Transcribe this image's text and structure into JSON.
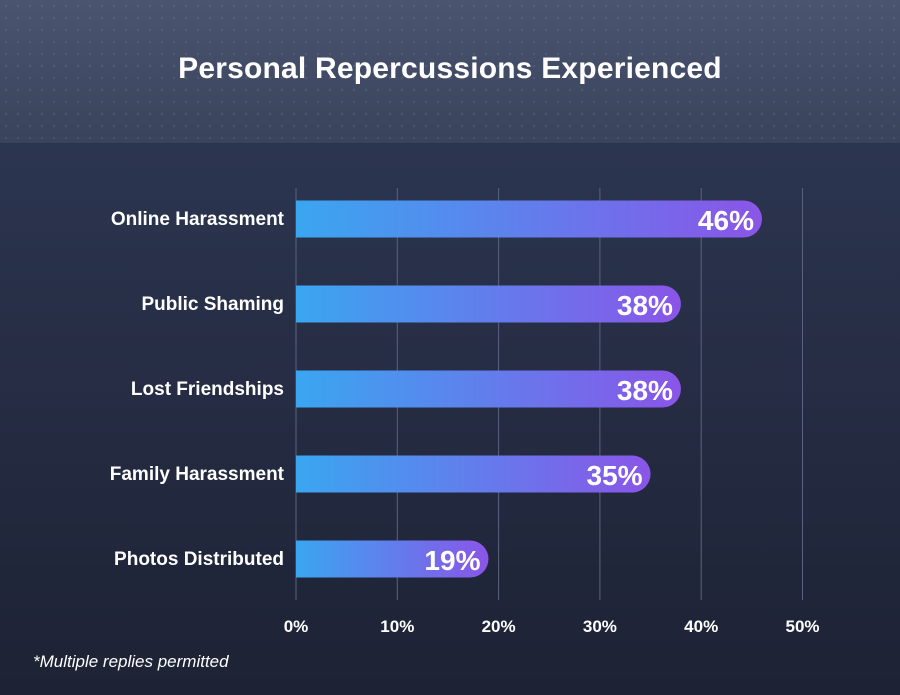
{
  "header": {
    "title": "Personal Repercussions Experienced"
  },
  "footnote": "*Multiple replies permitted",
  "colors": {
    "bar_start": "#3aa6f0",
    "bar_end": "#8a55e8",
    "grid": "#5a6280",
    "text": "#ffffff"
  },
  "chart_data": {
    "type": "bar",
    "orientation": "horizontal",
    "title": "Personal Repercussions Experienced",
    "categories": [
      "Online Harassment",
      "Public Shaming",
      "Lost Friendships",
      "Family Harassment",
      "Photos Distributed"
    ],
    "values": [
      46,
      38,
      38,
      35,
      19
    ],
    "value_labels": [
      "46%",
      "38%",
      "38%",
      "35%",
      "19%"
    ],
    "xticks": [
      0,
      10,
      20,
      30,
      40,
      50
    ],
    "xtick_labels": [
      "0%",
      "10%",
      "20%",
      "30%",
      "40%",
      "50%"
    ],
    "xlim": [
      0,
      50
    ],
    "grid": true,
    "legend": "none"
  }
}
